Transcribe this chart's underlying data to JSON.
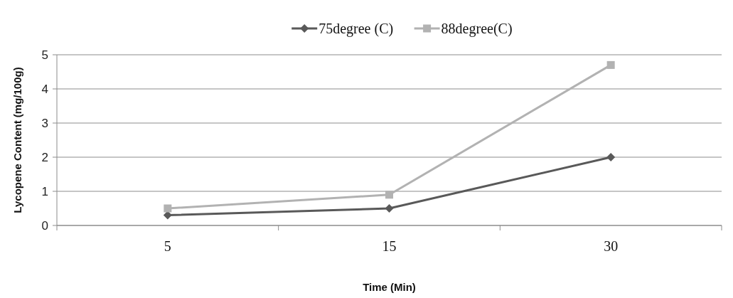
{
  "chart_data": {
    "type": "line",
    "xlabel": "Time (Min)",
    "ylabel": "Lycopene Content (mg/100g)",
    "categories": [
      "5",
      "15",
      "30"
    ],
    "ylim": [
      0,
      5
    ],
    "yticks": [
      0,
      1,
      2,
      3,
      4,
      5
    ],
    "grid": "y",
    "legend": "top",
    "line_style": "solid",
    "series": [
      {
        "name": "75degree (C)",
        "color": "#595959",
        "marker": "diamond",
        "values": [
          0.3,
          0.5,
          2.0
        ]
      },
      {
        "name": "88degree(C)",
        "color": "#b2b2b2",
        "marker": "square",
        "values": [
          0.5,
          0.9,
          4.7
        ]
      }
    ]
  }
}
